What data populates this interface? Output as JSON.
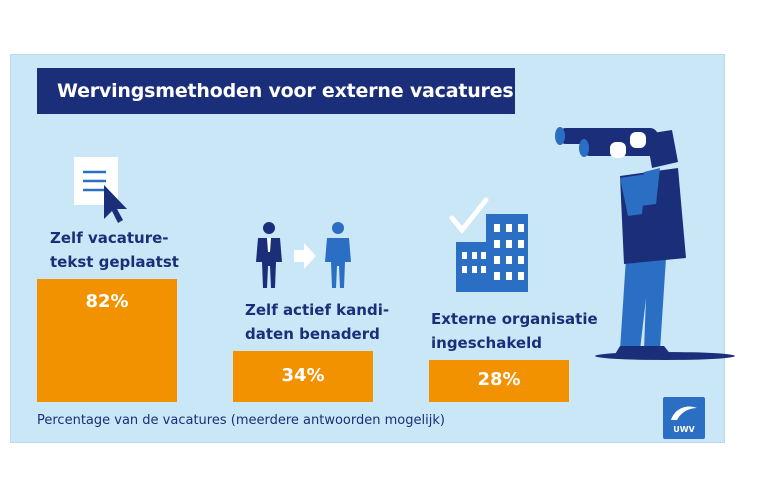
{
  "title": "Wervingsmethoden voor externe vacatures",
  "footnote": "Percentage van de vacatures (meerdere antwoorden mogelijk)",
  "logo_text": "UWV",
  "colors": {
    "bar": "#f39200",
    "title_bg": "#1b2e7a",
    "panel_bg": "#c9e7f7",
    "accent_blue": "#2a6fc4"
  },
  "icons": [
    "document-cursor-icon",
    "people-arrow-icon",
    "building-check-icon",
    "binoculars-person-illustration"
  ],
  "chart_data": {
    "type": "bar",
    "categories": [
      "Zelf vacature-\ntekst geplaatst",
      "Zelf actief kandi-\ndaten benaderd",
      "Externe organisatie\ningeschakeld"
    ],
    "values": [
      82,
      34,
      28
    ],
    "value_labels": [
      "82%",
      "34%",
      "28%"
    ],
    "unit": "%",
    "ylim": [
      0,
      100
    ],
    "title": "Wervingsmethoden voor externe vacatures",
    "xlabel": "",
    "ylabel": "",
    "grid": false
  }
}
